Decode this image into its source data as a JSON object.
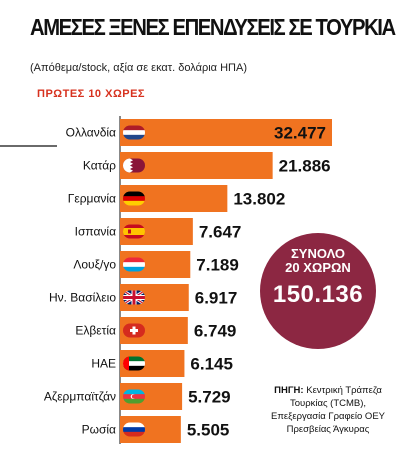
{
  "title": "ΑΜΕΣΕΣ ΞΕΝΕΣ ΕΠΕΝΔΥΣΕΙΣ ΣΕ ΤΟΥΡΚΙΑ",
  "subtitle": "(Απόθεμα/stock, αξία σε εκατ. δολάρια ΗΠΑ)",
  "section_label": "ΠΡΩΤΕΣ 10 ΧΩΡΕΣ",
  "total": {
    "label_line1": "ΣΥΝΟΛΟ",
    "label_line2": "20 ΧΩΡΩΝ",
    "value": "150.136"
  },
  "source": {
    "label": "ΠΗΓΗ:",
    "line1": "Κεντρική Τράπεζα",
    "line2": "Τουρκίας (TCMB),",
    "line3": "Επεξεργασία Γραφείο ΟΕΥ",
    "line4": "Πρεσβείας Άγκυρας"
  },
  "colors": {
    "bar": "#f07320",
    "accent_red": "#d7311e",
    "badge": "#8c2742",
    "title": "#111111"
  },
  "chart_data": {
    "type": "bar",
    "orientation": "horizontal",
    "categories": [
      "Ολλανδία",
      "Κατάρ",
      "Γερμανία",
      "Ισπανία",
      "Λουξ/γο",
      "Ην. Βασίλειο",
      "Ελβετία",
      "ΗΑΕ",
      "Αζερμπαϊτζάν",
      "Ρωσία"
    ],
    "values": [
      32477,
      21886,
      13802,
      7647,
      7189,
      6917,
      6749,
      6145,
      5729,
      5505
    ],
    "value_labels": [
      "32.477",
      "21.886",
      "13.802",
      "7.647",
      "7.189",
      "6.917",
      "6.749",
      "6.145",
      "5.729",
      "5.505"
    ],
    "flags": [
      "netherlands-flag",
      "qatar-flag",
      "germany-flag",
      "spain-flag",
      "luxembourg-flag",
      "uk-flag",
      "switzerland-flag",
      "uae-flag",
      "azerbaijan-flag",
      "russia-flag"
    ],
    "xlim": [
      0,
      32477
    ],
    "grid": false,
    "legend": "none"
  }
}
